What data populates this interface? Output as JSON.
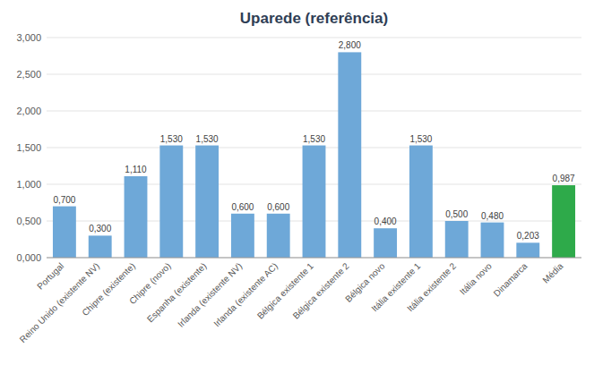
{
  "chart_data": {
    "type": "bar",
    "title": "Uparede (referência)",
    "categories": [
      "Portugal",
      "Reino Unido (existente NV)",
      "Chipre (existente)",
      "Chipre (novo)",
      "Espanha (existente)",
      "Irlanda (existente NV)",
      "Irlanda (existente AC)",
      "Bélgica existente 1",
      "Bélgica existente 2",
      "Bélgica novo",
      "Itália existente 1",
      "Itália existente 2",
      "Itália novo",
      "Dinamarca",
      "Média"
    ],
    "values": [
      0.7,
      0.3,
      1.11,
      1.53,
      1.53,
      0.6,
      0.6,
      1.53,
      2.8,
      0.4,
      1.53,
      0.5,
      0.48,
      0.203,
      0.987
    ],
    "value_labels": [
      "0,700",
      "0,300",
      "1,110",
      "1,530",
      "1,530",
      "0,600",
      "0,600",
      "1,530",
      "2,800",
      "0,400",
      "1,530",
      "0,500",
      "0,480",
      "0,203",
      "0,987"
    ],
    "colors": [
      "#6EA8D8",
      "#6EA8D8",
      "#6EA8D8",
      "#6EA8D8",
      "#6EA8D8",
      "#6EA8D8",
      "#6EA8D8",
      "#6EA8D8",
      "#6EA8D8",
      "#6EA8D8",
      "#6EA8D8",
      "#6EA8D8",
      "#6EA8D8",
      "#6EA8D8",
      "#2EAA4A"
    ],
    "ylim": [
      0,
      3.0
    ],
    "yticks": [
      {
        "value": 0.0,
        "label": "0,000"
      },
      {
        "value": 0.5,
        "label": "0,500"
      },
      {
        "value": 1.0,
        "label": "1,000"
      },
      {
        "value": 1.5,
        "label": "1,500"
      },
      {
        "value": 2.0,
        "label": "2,000"
      },
      {
        "value": 2.5,
        "label": "2,500"
      },
      {
        "value": 3.0,
        "label": "3,000"
      }
    ],
    "grid": true,
    "data_labels": true
  }
}
